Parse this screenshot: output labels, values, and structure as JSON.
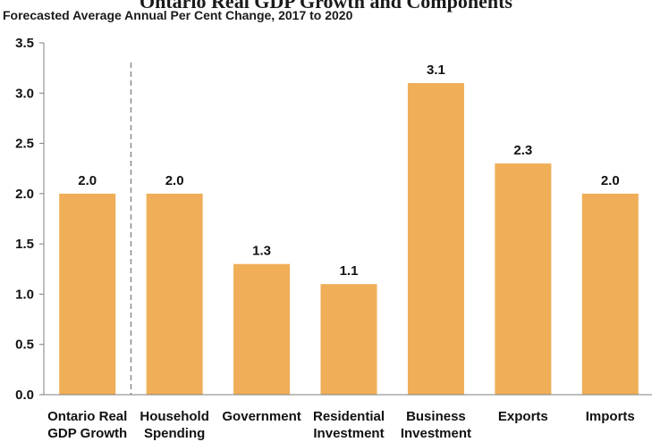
{
  "chart_data": {
    "type": "bar",
    "title": "Ontario Real GDP Growth and Components",
    "subtitle": "Forecasted Average Annual Per Cent Change, 2017 to 2020",
    "xlabel": "",
    "ylabel": "",
    "ylim": [
      0,
      3.5
    ],
    "yticks": [
      "0.0",
      "0.5",
      "1.0",
      "1.5",
      "2.0",
      "2.5",
      "3.0",
      "3.5"
    ],
    "categories": [
      [
        "Ontario Real",
        "GDP Growth"
      ],
      [
        "Household",
        "Spending"
      ],
      [
        "Government"
      ],
      [
        "Residential",
        "Investment"
      ],
      [
        "Business",
        "Investment"
      ],
      [
        "Exports"
      ],
      [
        "Imports"
      ]
    ],
    "values": [
      2.0,
      2.0,
      1.3,
      1.1,
      3.1,
      2.3,
      2.0
    ],
    "labels": [
      "2.0",
      "2.0",
      "1.3",
      "1.1",
      "3.1",
      "2.3",
      "2.0"
    ],
    "bar_color": "#f0ae58",
    "separator": "dashed line after first category",
    "grid": false,
    "legend": "none"
  }
}
